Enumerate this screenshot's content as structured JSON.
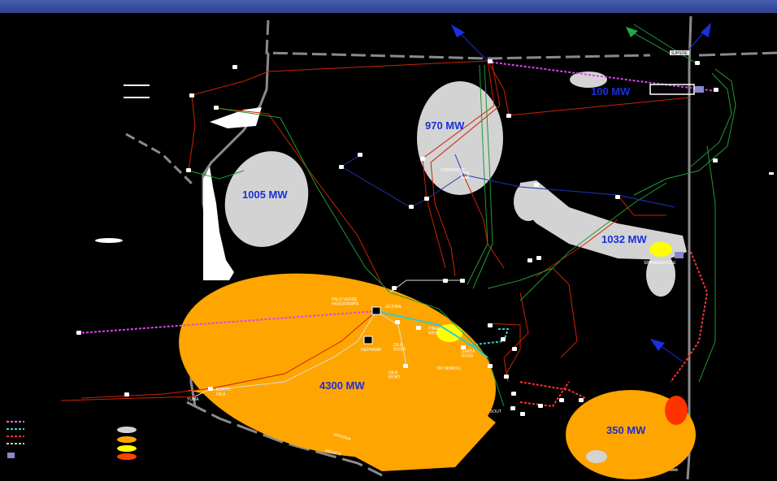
{
  "zones": [
    {
      "id": "nm-north",
      "label": "100 MW",
      "color": "#d3d3d3"
    },
    {
      "id": "north-central",
      "label": "970 MW",
      "color": "#d3d3d3"
    },
    {
      "id": "northwest",
      "label": "1005 MW",
      "color": "#d3d3d3"
    },
    {
      "id": "east",
      "label": "1032 MW",
      "color": "#d3d3d3"
    },
    {
      "id": "phoenix",
      "label": "4300 MW",
      "color": "#ffa500"
    },
    {
      "id": "southeast",
      "label": "350 MW",
      "color": "#ffa500"
    }
  ],
  "stations": {
    "palo_verde": "PALO VERDE\nHASSAYAMPA",
    "coronado": "CORONADO",
    "jojoba": "JOJOBA",
    "pinal_west": "PINAL\nWEST",
    "santa_rosa": "SANTA\nROSA",
    "tat_momoli": "TAT MOMOLI",
    "redhawk": "REDHAWK",
    "gila_river": "GILA\nRIVER",
    "gila_bend": "GILA\nBEND",
    "north_gila": "NORTH\nGILA",
    "yuma": "YUMA",
    "springerville": "SPRINGERVILLE",
    "sjpsa": "SJPSOE",
    "south": "SOUT"
  },
  "state_labels": [
    "ARIZONA",
    "MEXICO"
  ],
  "legend": {
    "line_colors": [
      "#ff66ff",
      "#33dddd",
      "#ff3333",
      "#cccccc"
    ],
    "patch_colors": [
      "#d3d3d3",
      "#ffa500",
      "#ffff00",
      "#ff4400"
    ],
    "box_color": "#8888cc"
  },
  "colors": {
    "background": "#000000",
    "header": "#3f54a5",
    "border": "#888888",
    "line_red": "#cc2200",
    "line_green": "#229933",
    "line_blue": "#2233bb",
    "line_magenta": "#dd44ee",
    "line_cyan": "#33cccc",
    "arrow_blue": "#1a2fe0",
    "arrow_green": "#22aa44"
  }
}
